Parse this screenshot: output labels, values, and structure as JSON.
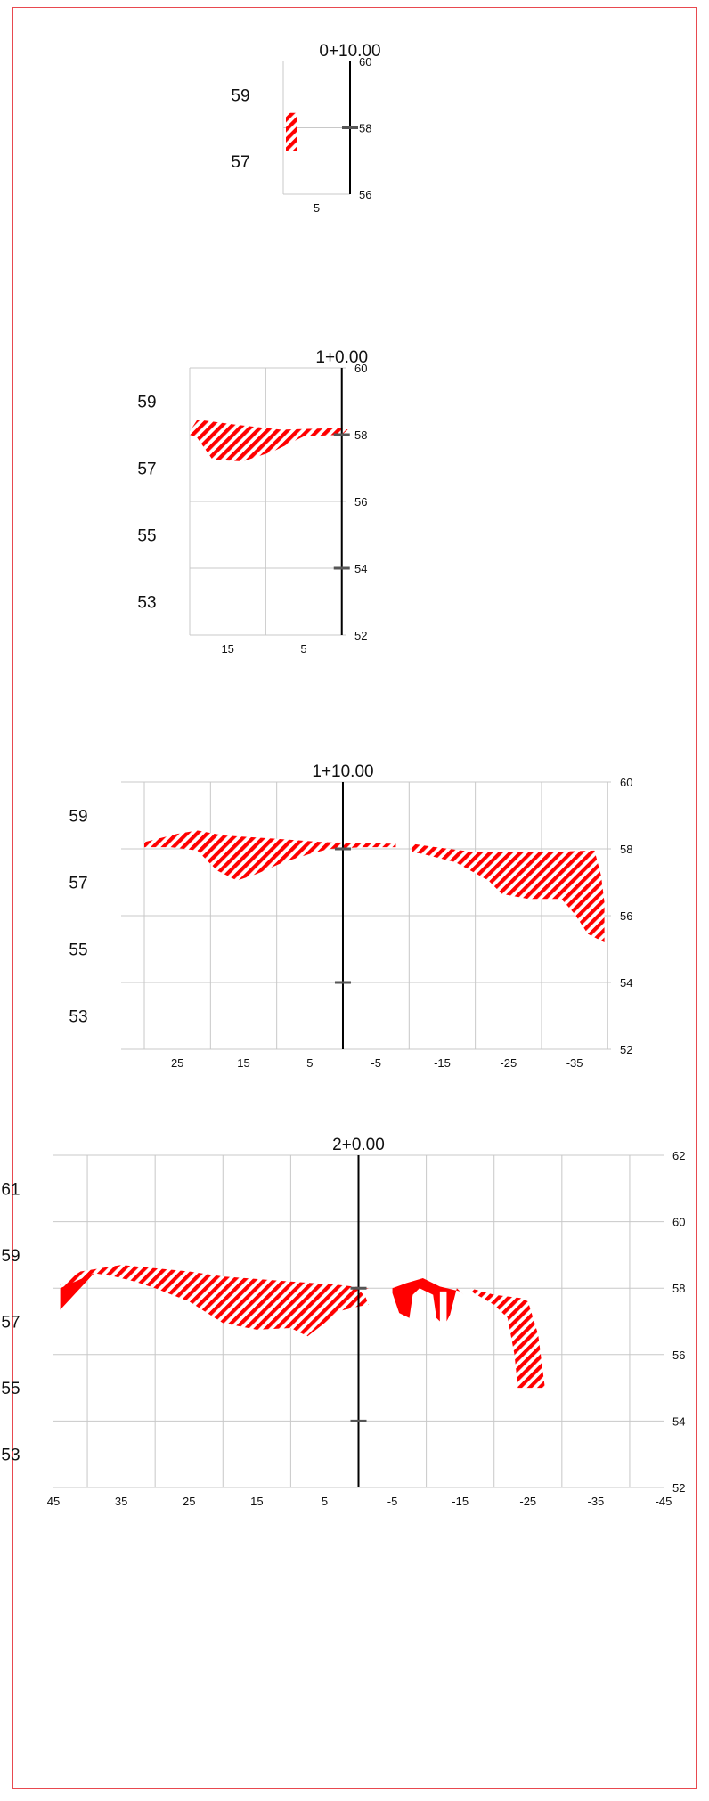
{
  "colors": {
    "border": "#e8494f",
    "fill": "#ff0000",
    "grid": "#c8c8c8",
    "centerline": "#000000",
    "marker": "#555555"
  },
  "chart_data": [
    {
      "type": "area",
      "title": "0+10.00",
      "xlim": [
        10,
        0
      ],
      "xticks": [
        5
      ],
      "left_yticks": [
        57,
        59
      ],
      "right_ylim": [
        56,
        60
      ],
      "right_yticks": [
        56,
        58,
        60
      ],
      "grid_x": [
        10,
        0
      ],
      "grid_y": [
        58
      ],
      "centerline_offset": 0,
      "markers": [
        58
      ],
      "hatched_regions": [
        [
          [
            9.6,
            58.45
          ],
          [
            8.0,
            58.45
          ],
          [
            8.0,
            57.3
          ],
          [
            9.6,
            57.3
          ]
        ]
      ],
      "solid_regions": []
    },
    {
      "type": "area",
      "title": "1+0.00",
      "xlim": [
        20,
        -0.5
      ],
      "xticks": [
        15,
        5
      ],
      "left_yticks": [
        53,
        55,
        57,
        59
      ],
      "right_ylim": [
        52,
        60
      ],
      "right_yticks": [
        52,
        54,
        56,
        58,
        60
      ],
      "grid_x": [
        20,
        10,
        0
      ],
      "grid_y": [
        60,
        56,
        54
      ],
      "centerline_offset": 0,
      "markers": [
        58,
        54
      ],
      "hatched_regions": [
        [
          [
            20.0,
            58.1
          ],
          [
            19.0,
            58.45
          ],
          [
            14.0,
            58.3
          ],
          [
            8.0,
            58.15
          ],
          [
            0.0,
            58.2
          ],
          [
            -0.8,
            58.15
          ],
          [
            0.0,
            58.0
          ],
          [
            5.0,
            57.95
          ],
          [
            9.0,
            57.5
          ],
          [
            13.0,
            57.2
          ],
          [
            17.0,
            57.25
          ],
          [
            19.0,
            57.9
          ],
          [
            20.0,
            58.0
          ]
        ]
      ],
      "solid_regions": []
    },
    {
      "type": "area",
      "title": "1+10.00",
      "xlim": [
        33.5,
        -40.5
      ],
      "xticks": [
        25,
        15,
        5,
        -5,
        -15,
        -25,
        -35
      ],
      "left_yticks": [
        53,
        55,
        57,
        59
      ],
      "right_ylim": [
        52,
        60
      ],
      "right_yticks": [
        52,
        54,
        56,
        58,
        60
      ],
      "grid_x": [
        30,
        20,
        10,
        0,
        -10,
        -20,
        -30,
        -40
      ],
      "grid_y": [
        60,
        58,
        56,
        54
      ],
      "centerline_offset": 0,
      "markers": [
        58,
        54
      ],
      "hatched_regions": [
        [
          [
            30.0,
            58.2
          ],
          [
            25.0,
            58.45
          ],
          [
            22.0,
            58.55
          ],
          [
            18.0,
            58.4
          ],
          [
            10.0,
            58.3
          ],
          [
            3.0,
            58.2
          ],
          [
            -8.0,
            58.15
          ],
          [
            -8.0,
            58.05
          ],
          [
            -3.0,
            58.05
          ],
          [
            2.0,
            58.0
          ],
          [
            5.0,
            57.85
          ],
          [
            9.0,
            57.6
          ],
          [
            13.0,
            57.25
          ],
          [
            16.0,
            57.05
          ],
          [
            19.0,
            57.35
          ],
          [
            22.0,
            57.95
          ],
          [
            26.0,
            58.05
          ],
          [
            30.0,
            58.05
          ]
        ],
        [
          [
            -10.5,
            58.15
          ],
          [
            -14.0,
            58.05
          ],
          [
            -20.0,
            57.9
          ],
          [
            -30.0,
            57.9
          ],
          [
            -38.0,
            57.95
          ],
          [
            -39.0,
            57.2
          ],
          [
            -39.5,
            56.4
          ],
          [
            -39.5,
            55.2
          ],
          [
            -37.0,
            55.45
          ],
          [
            -35.0,
            56.05
          ],
          [
            -33.0,
            56.5
          ],
          [
            -28.0,
            56.5
          ],
          [
            -24.0,
            56.65
          ],
          [
            -22.0,
            57.05
          ],
          [
            -17.0,
            57.6
          ],
          [
            -12.0,
            57.85
          ],
          [
            -10.5,
            57.9
          ]
        ]
      ],
      "solid_regions": []
    },
    {
      "type": "area",
      "title": "2+0.00",
      "xlim": [
        45,
        -45
      ],
      "xticks": [
        45,
        35,
        25,
        15,
        5,
        -5,
        -15,
        -25,
        -35,
        -45
      ],
      "left_yticks": [
        53,
        55,
        57,
        59,
        61
      ],
      "right_ylim": [
        52,
        62
      ],
      "right_yticks": [
        52,
        54,
        56,
        58,
        60,
        62
      ],
      "grid_x": [
        40,
        30,
        20,
        10,
        0,
        -10,
        -20,
        -30,
        -40
      ],
      "grid_y": [
        62,
        60,
        58,
        56,
        54
      ],
      "centerline_offset": 0,
      "markers": [
        58,
        54
      ],
      "hatched_regions": [
        [
          [
            44.0,
            58.1
          ],
          [
            41.0,
            58.5
          ],
          [
            38.0,
            58.6
          ],
          [
            35.0,
            58.7
          ],
          [
            30.0,
            58.6
          ],
          [
            25.0,
            58.5
          ],
          [
            20.0,
            58.35
          ],
          [
            10.0,
            58.2
          ],
          [
            3.0,
            58.1
          ],
          [
            -1.5,
            58.0
          ],
          [
            0.0,
            57.95
          ],
          [
            -1.0,
            57.75
          ],
          [
            -1.5,
            57.5
          ],
          [
            0.0,
            57.45
          ],
          [
            3.0,
            57.3
          ],
          [
            5.0,
            56.95
          ],
          [
            7.5,
            56.55
          ],
          [
            10.0,
            56.8
          ],
          [
            15.0,
            56.75
          ],
          [
            20.0,
            56.95
          ],
          [
            25.0,
            57.6
          ],
          [
            30.0,
            58.0
          ],
          [
            33.0,
            58.2
          ],
          [
            36.0,
            58.35
          ],
          [
            39.0,
            58.45
          ],
          [
            44.0,
            58.0
          ]
        ],
        [
          [
            -16.5,
            58.0
          ],
          [
            -20.0,
            57.8
          ],
          [
            -24.0,
            57.7
          ],
          [
            -25.0,
            57.6
          ],
          [
            -26.5,
            56.6
          ],
          [
            -27.5,
            55.0
          ],
          [
            -23.5,
            55.0
          ],
          [
            -23.0,
            56.0
          ],
          [
            -22.0,
            57.1
          ],
          [
            -20.0,
            57.5
          ],
          [
            -17.0,
            57.85
          ]
        ]
      ],
      "solid_regions": [
        [
          [
            44.0,
            58.0
          ],
          [
            43.0,
            58.2
          ],
          [
            41.5,
            58.3
          ],
          [
            41.0,
            58.5
          ],
          [
            39.0,
            58.45
          ],
          [
            44.0,
            57.35
          ]
        ],
        [
          [
            -5.0,
            58.0
          ],
          [
            -7.0,
            58.15
          ],
          [
            -9.5,
            58.3
          ],
          [
            -12.0,
            58.05
          ],
          [
            -15.0,
            57.9
          ],
          [
            -15.5,
            57.8
          ],
          [
            -14.5,
            58.0
          ],
          [
            -13.5,
            57.2
          ],
          [
            -13.0,
            57.0
          ],
          [
            -13.0,
            57.9
          ],
          [
            -12.0,
            57.9
          ],
          [
            -12.0,
            57.0
          ],
          [
            -11.5,
            57.1
          ],
          [
            -11.0,
            57.8
          ],
          [
            -9.0,
            58.0
          ],
          [
            -8.0,
            57.8
          ],
          [
            -7.5,
            57.1
          ],
          [
            -6.0,
            57.25
          ],
          [
            -5.0,
            57.85
          ]
        ]
      ]
    }
  ]
}
